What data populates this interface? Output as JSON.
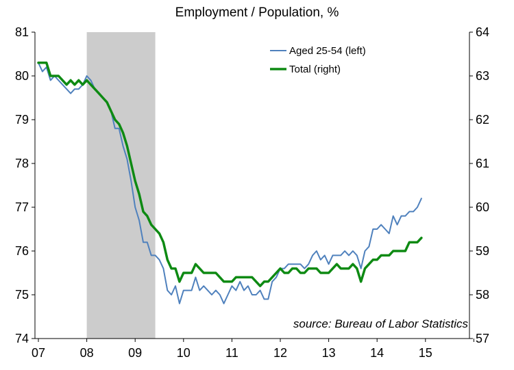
{
  "chart_data": {
    "type": "line",
    "title": "Employment / Population, %",
    "source": "source: Bureau of Labor Statistics",
    "x_start_year": 2007,
    "x_tick_labels": [
      "07",
      "08",
      "09",
      "10",
      "11",
      "12",
      "13",
      "14",
      "15"
    ],
    "left_axis": {
      "ylim": [
        74,
        81
      ],
      "ticks": [
        "74",
        "75",
        "76",
        "77",
        "78",
        "79",
        "80",
        "81"
      ]
    },
    "right_axis": {
      "ylim": [
        57,
        64
      ],
      "ticks": [
        "57",
        "58",
        "59",
        "60",
        "61",
        "62",
        "63",
        "64"
      ]
    },
    "recession_shade": {
      "start": "2008-01",
      "end": "2009-06",
      "color": "#cccccc"
    },
    "legend_position": "top-center",
    "grid": false,
    "series": [
      {
        "name": "Aged 25-54 (left)",
        "axis": "left",
        "color": "#4f81bd",
        "width": 2,
        "values": [
          80.3,
          80.1,
          80.2,
          79.9,
          80.0,
          79.9,
          79.8,
          79.7,
          79.6,
          79.7,
          79.7,
          79.8,
          80.0,
          79.9,
          79.7,
          79.6,
          79.5,
          79.4,
          79.2,
          78.8,
          78.8,
          78.4,
          78.1,
          77.6,
          77.0,
          76.7,
          76.2,
          76.2,
          75.9,
          75.9,
          75.8,
          75.6,
          75.1,
          75.0,
          75.2,
          74.8,
          75.1,
          75.1,
          75.1,
          75.4,
          75.1,
          75.2,
          75.1,
          75.0,
          75.1,
          75.0,
          74.8,
          75.0,
          75.2,
          75.1,
          75.3,
          75.1,
          75.2,
          75.0,
          75.0,
          75.1,
          74.9,
          74.9,
          75.3,
          75.4,
          75.6,
          75.6,
          75.7,
          75.7,
          75.7,
          75.7,
          75.6,
          75.7,
          75.9,
          76.0,
          75.8,
          75.9,
          75.7,
          75.9,
          75.9,
          75.9,
          76.0,
          75.9,
          76.0,
          75.9,
          75.6,
          76.0,
          76.1,
          76.5,
          76.5,
          76.6,
          76.5,
          76.4,
          76.8,
          76.6,
          76.8,
          76.8,
          76.9,
          76.9,
          77.0,
          77.2
        ]
      },
      {
        "name": "Total (right)",
        "axis": "right",
        "color": "#0e8a13",
        "width": 3.5,
        "values": [
          63.3,
          63.3,
          63.3,
          63.0,
          63.0,
          63.0,
          62.9,
          62.8,
          62.9,
          62.8,
          62.9,
          62.8,
          62.9,
          62.8,
          62.7,
          62.6,
          62.5,
          62.4,
          62.2,
          62.0,
          61.9,
          61.7,
          61.4,
          61.0,
          60.6,
          60.3,
          59.9,
          59.8,
          59.6,
          59.5,
          59.4,
          59.2,
          58.8,
          58.6,
          58.6,
          58.3,
          58.5,
          58.5,
          58.5,
          58.7,
          58.6,
          58.5,
          58.5,
          58.5,
          58.5,
          58.4,
          58.3,
          58.3,
          58.3,
          58.4,
          58.4,
          58.4,
          58.4,
          58.4,
          58.3,
          58.2,
          58.3,
          58.3,
          58.4,
          58.5,
          58.6,
          58.5,
          58.5,
          58.6,
          58.6,
          58.5,
          58.5,
          58.6,
          58.6,
          58.6,
          58.5,
          58.5,
          58.5,
          58.6,
          58.7,
          58.6,
          58.6,
          58.6,
          58.7,
          58.6,
          58.3,
          58.6,
          58.7,
          58.8,
          58.8,
          58.9,
          58.9,
          58.9,
          59.0,
          59.0,
          59.0,
          59.0,
          59.2,
          59.2,
          59.2,
          59.3
        ]
      }
    ]
  }
}
